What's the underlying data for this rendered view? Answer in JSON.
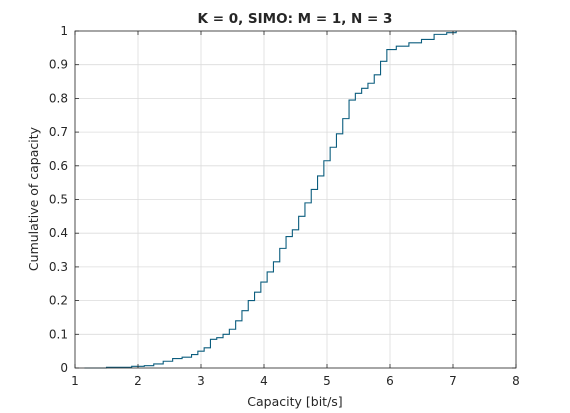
{
  "chart_data": {
    "type": "line",
    "title": "K = 0, SIMO: M = 1, N = 3",
    "xlabel": "Capacity [bit/s]",
    "ylabel": "Cumulative of capacity",
    "xlim": [
      1,
      8
    ],
    "ylim": [
      0,
      1
    ],
    "xticks": [
      1,
      2,
      3,
      4,
      5,
      6,
      7,
      8
    ],
    "yticks": [
      0,
      0.1,
      0.2,
      0.3,
      0.4,
      0.5,
      0.6,
      0.7,
      0.8,
      0.9,
      1
    ],
    "grid": true,
    "line_style": "step",
    "line_color": "#0b5d7e",
    "series": [
      {
        "x": [
          1.15,
          1.5,
          1.9,
          2.1,
          2.25,
          2.4,
          2.55,
          2.7,
          2.85,
          2.95,
          3.05,
          3.15,
          3.25,
          3.35,
          3.45,
          3.55,
          3.65,
          3.75,
          3.85,
          3.95,
          4.05,
          4.15,
          4.25,
          4.35,
          4.45,
          4.55,
          4.65,
          4.75,
          4.85,
          4.95,
          5.05,
          5.15,
          5.25,
          5.35,
          5.45,
          5.55,
          5.65,
          5.75,
          5.85,
          5.95,
          6.1,
          6.3,
          6.5,
          6.7,
          6.9,
          7.05
        ],
        "y": [
          0.0,
          0.002,
          0.005,
          0.007,
          0.012,
          0.02,
          0.028,
          0.032,
          0.04,
          0.05,
          0.06,
          0.085,
          0.09,
          0.1,
          0.115,
          0.14,
          0.17,
          0.2,
          0.225,
          0.255,
          0.285,
          0.315,
          0.355,
          0.39,
          0.41,
          0.45,
          0.49,
          0.53,
          0.57,
          0.615,
          0.655,
          0.695,
          0.74,
          0.795,
          0.815,
          0.83,
          0.845,
          0.87,
          0.91,
          0.945,
          0.955,
          0.965,
          0.975,
          0.99,
          0.995,
          1.0
        ]
      }
    ]
  }
}
